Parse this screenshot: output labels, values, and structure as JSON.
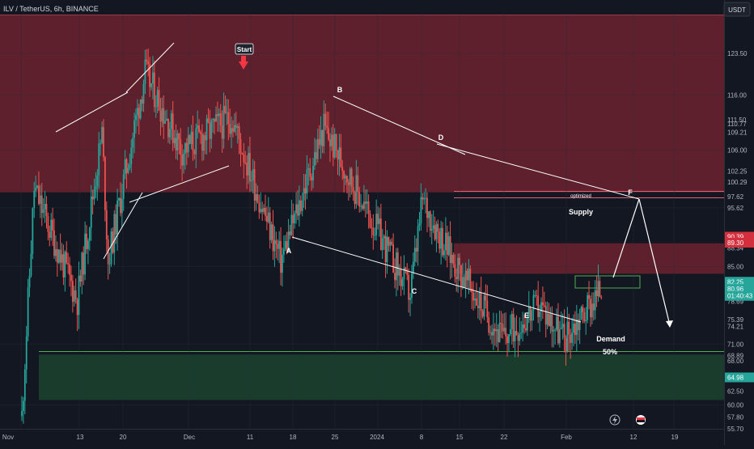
{
  "header": {
    "symbol": "ILV / TetherUS, 6h, BINANCE",
    "currency": "USDT"
  },
  "chart_data": {
    "type": "candlestick",
    "ylim": [
      55.7,
      130.5
    ],
    "y_ticks": [
      123.5,
      116.0,
      111.5,
      110.77,
      109.21,
      106.0,
      102.25,
      100.29,
      97.62,
      95.62,
      90.3,
      88.88,
      88.34,
      85.0,
      78.69,
      75.39,
      74.21,
      71.0,
      68.89,
      68.0,
      62.5,
      60.0,
      57.8,
      55.7
    ],
    "x_ticks": [
      "Nov",
      "13",
      "20",
      "Dec",
      "11",
      "18",
      "25",
      "2024",
      "8",
      "15",
      "22",
      "Feb",
      "12",
      "19"
    ],
    "price_badges": [
      {
        "text": "90.39",
        "value": 90.39,
        "color": "#d32f3d"
      },
      {
        "text": "89.30",
        "value": 89.3,
        "color": "#d32f3d"
      },
      {
        "text": "82.25",
        "value": 82.25,
        "color": "#26a69a"
      },
      {
        "text": "80.96",
        "value": 80.96,
        "color": "#26a69a"
      },
      {
        "text": "01:40:43",
        "value": 79.7,
        "color": "#26a69a"
      },
      {
        "text": "64.98",
        "value": 64.98,
        "color": "#26a69a"
      }
    ],
    "zones": [
      {
        "name": "resistance-zone",
        "y_from": 98.4,
        "y_to": 130.5,
        "color": "#7a2430"
      },
      {
        "name": "supply-zone",
        "y_from": 83.7,
        "y_to": 89.2,
        "color": "#7a2430"
      },
      {
        "name": "demand-zone",
        "y_from": 60.9,
        "y_to": 69.1,
        "color": "#1d4b30"
      }
    ],
    "labels": {
      "start": "Start",
      "wave_a": "A",
      "wave_b": "B",
      "wave_c": "C",
      "wave_d": "D",
      "wave_e": "E",
      "wave_f": "F",
      "optimized": "optimized",
      "supply": "Supply",
      "demand": "Demand",
      "fifty": "50%"
    },
    "key_prices": [
      {
        "date": "Nov 6",
        "price": 58
      },
      {
        "date": "Nov 8",
        "price": 99
      },
      {
        "date": "Nov 15",
        "price": 79
      },
      {
        "date": "Nov 19",
        "price": 109
      },
      {
        "date": "Nov 20",
        "price": 86
      },
      {
        "date": "Nov 26",
        "price": 120
      },
      {
        "date": "Dec 2",
        "price": 106
      },
      {
        "date": "Dec 10",
        "price": 112
      },
      {
        "date": "Dec 18",
        "price": 86
      },
      {
        "date": "Dec 25",
        "price": 110
      },
      {
        "date": "Jan 8",
        "price": 80
      },
      {
        "date": "Jan 10",
        "price": 97
      },
      {
        "date": "Jan 15",
        "price": 86
      },
      {
        "date": "Jan 23",
        "price": 72
      },
      {
        "date": "Jan 29",
        "price": 78
      },
      {
        "date": "Feb 2",
        "price": 72
      },
      {
        "date": "Feb 8",
        "price": 81
      }
    ]
  }
}
